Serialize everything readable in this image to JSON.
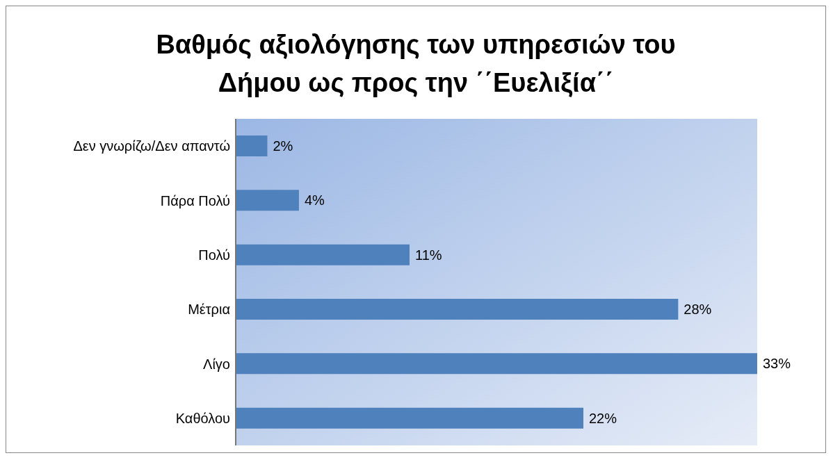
{
  "chart_data": {
    "type": "bar",
    "orientation": "horizontal",
    "title": "Βαθμός αξιολόγησης των υπηρεσιών του Δήμου ως προς την ΄΄Ευελιξία΄΄",
    "categories": [
      "Δεν γνωρίζω/Δεν απαντώ",
      "Πάρα Πολύ",
      "Πολύ",
      "Μέτρια",
      "Λίγο",
      "Καθόλου"
    ],
    "values": [
      2,
      4,
      11,
      28,
      33,
      22
    ],
    "color": "#4f81bd",
    "value_labels": [
      "2%",
      "4%",
      "11%",
      "28%",
      "33%",
      "22%"
    ]
  }
}
